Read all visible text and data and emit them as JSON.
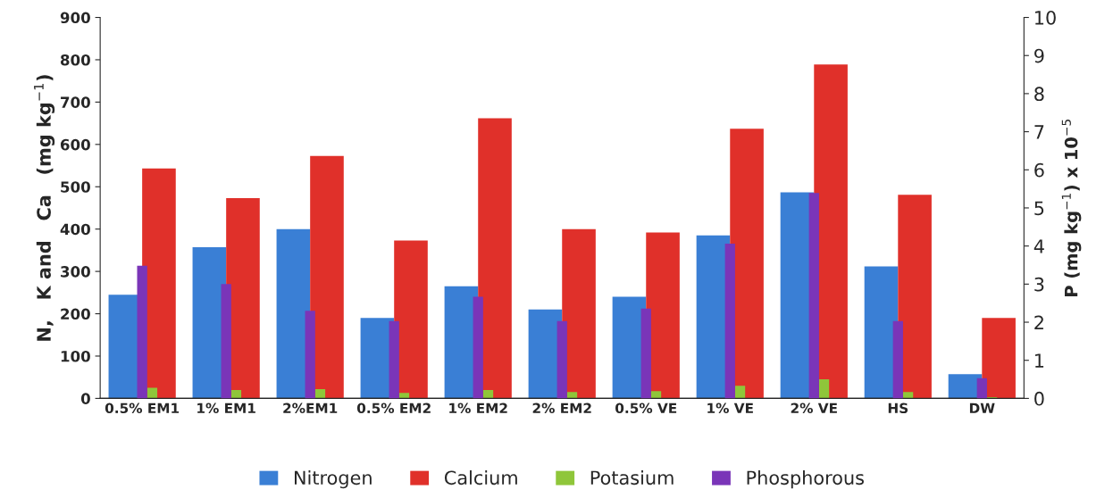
{
  "chart_data": {
    "type": "bar",
    "categories": [
      "0.5% EM1",
      "1% EM1",
      "2%EM1",
      "0.5% EM2",
      "1% EM2",
      "2% EM2",
      "0.5% VE",
      "1% VE",
      "2% VE",
      "HS",
      "DW"
    ],
    "ylabel": "N,   K and   Ca   (mg kg$^{−1}$)",
    "y2label": "P (mg kg$^{−1}$) x 10$^{−5}$",
    "ylim": [
      0,
      900
    ],
    "yticks": [
      0,
      100,
      200,
      300,
      400,
      500,
      600,
      700,
      800,
      900
    ],
    "y2lim": [
      0,
      10
    ],
    "y2ticks": [
      0,
      1,
      2,
      3,
      4,
      5,
      6,
      7,
      8,
      9,
      10
    ],
    "legend": "bottom",
    "grid": false,
    "series": [
      {
        "name": "Nitrogen",
        "color": "#3a7fd5",
        "values": [
          245,
          357,
          400,
          190,
          265,
          210,
          240,
          385,
          487,
          312,
          57
        ]
      },
      {
        "name": "Calcium",
        "color": "#e0302a",
        "values": [
          543,
          473,
          573,
          373,
          662,
          400,
          392,
          637,
          789,
          481,
          190
        ]
      },
      {
        "name": "Potasium",
        "color": "#8fc63a",
        "values": [
          25,
          20,
          22,
          13,
          20,
          15,
          17,
          30,
          45,
          15,
          3
        ]
      },
      {
        "name": "Phosphorous",
        "color": "#7a35b8",
        "axis": "y2",
        "values": [
          3.48,
          3.0,
          2.3,
          2.03,
          2.67,
          2.03,
          2.36,
          4.06,
          5.39,
          2.03,
          0.53
        ]
      }
    ]
  }
}
